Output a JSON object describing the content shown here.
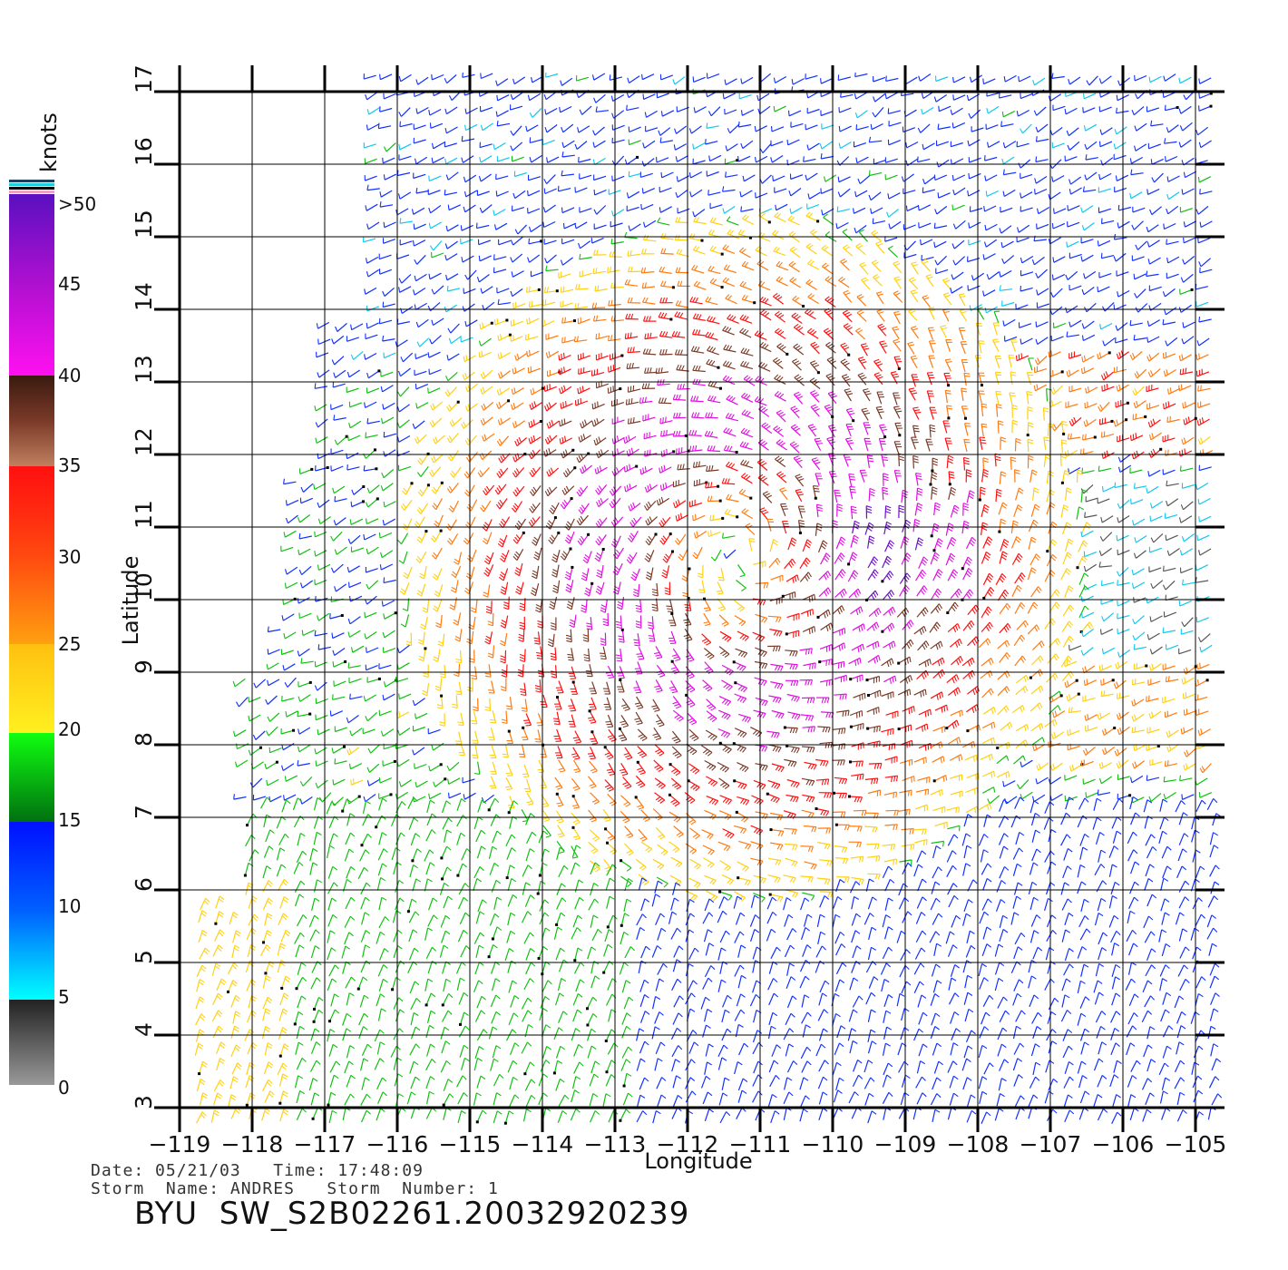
{
  "legend": {
    "unit": "knots",
    "labels": [
      ">50",
      "45",
      "40",
      "35",
      "30",
      "25",
      "20",
      "15",
      "10",
      "5",
      "0"
    ]
  },
  "axes": {
    "x_label": "Longitude",
    "y_label": "Latitude",
    "lon_ticks": [
      "-119",
      "-118",
      "-117",
      "-116",
      "-115",
      "-114",
      "-113",
      "-112",
      "-111",
      "-110",
      "-109",
      "-108",
      "-107",
      "-106",
      "-105"
    ],
    "lat_ticks": [
      "3",
      "4",
      "5",
      "6",
      "7",
      "8",
      "9",
      "10",
      "11",
      "12",
      "13",
      "14",
      "15",
      "16",
      "17"
    ],
    "lon_range": [
      -119,
      -104.6
    ],
    "lat_range": [
      3,
      17
    ]
  },
  "footer": {
    "date_line": "Date: 05/21/03   Time: 17:48:09",
    "storm_line": "Storm  Name: ANDRES   Storm  Number: 1",
    "file_title": "BYU  SW_S2B02261.20032920239"
  },
  "map_data": {
    "storm_center": {
      "lon": -111.2,
      "lat": 10.6
    },
    "speed_scale_colors": {
      "gt50": "#6a10c8",
      "40-50": "#e010e0",
      "35-40": "#7a3a28",
      "30-35": "#ff1010",
      "25-30": "#ff7a10",
      "20-25": "#ffd010",
      "15-20": "#10c010",
      "10-15": "#1030ff",
      "5-10": "#10c8f0",
      "0-5": "#555555"
    }
  }
}
